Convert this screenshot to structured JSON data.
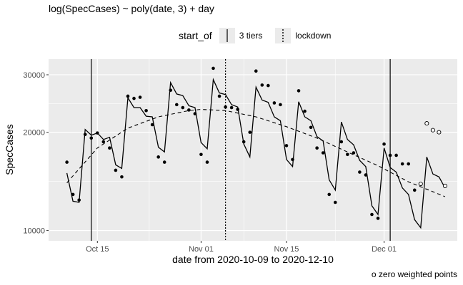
{
  "chart_data": {
    "type": "scatter",
    "title": "log(SpecCases) ~ poly(date, 3) + day",
    "xlabel": "date from 2020-10-09 to 2020-12-10",
    "ylabel": "SpecCases",
    "x_range": [
      "2020-10-07",
      "2020-12-13"
    ],
    "y_range": [
      9300,
      33500
    ],
    "y_scale": "log",
    "y_ticks": [
      {
        "value": 10000,
        "label": "10000"
      },
      {
        "value": 20000,
        "label": "20000"
      },
      {
        "value": 30000,
        "label": "30000"
      }
    ],
    "x_ticks": [
      {
        "date": "2020-10-15",
        "label": "Oct 15"
      },
      {
        "date": "2020-11-01",
        "label": "Nov 01"
      },
      {
        "date": "2020-11-15",
        "label": "Nov 15"
      },
      {
        "date": "2020-12-01",
        "label": "Dec 01"
      }
    ],
    "grid": true,
    "legend": {
      "title": "start_of",
      "position": "top",
      "entries": [
        {
          "label": "3 tiers",
          "linetype": "solid"
        },
        {
          "label": "lockdown",
          "linetype": "dotted"
        }
      ]
    },
    "vlines": [
      {
        "date": "2020-10-14",
        "linetype": "solid"
      },
      {
        "date": "2020-11-05",
        "linetype": "dotted"
      },
      {
        "date": "2020-12-02",
        "linetype": "solid"
      }
    ],
    "note": "o zero weighted points",
    "series": [
      {
        "kind": "points",
        "points": [
          [
            "2020-10-10",
            16200
          ],
          [
            "2020-10-11",
            12900
          ],
          [
            "2020-10-12",
            12400
          ],
          [
            "2020-10-13",
            19700
          ],
          [
            "2020-10-14",
            19200
          ],
          [
            "2020-10-15",
            19900
          ],
          [
            "2020-10-16",
            18700
          ],
          [
            "2020-10-17",
            17900
          ],
          [
            "2020-10-18",
            15300
          ],
          [
            "2020-10-19",
            14600
          ],
          [
            "2020-10-20",
            25800
          ],
          [
            "2020-10-21",
            25400
          ],
          [
            "2020-10-22",
            25600
          ],
          [
            "2020-10-23",
            23300
          ],
          [
            "2020-10-24",
            21100
          ],
          [
            "2020-10-25",
            16800
          ],
          [
            "2020-10-26",
            16200
          ],
          [
            "2020-10-27",
            26900
          ],
          [
            "2020-10-28",
            24300
          ],
          [
            "2020-10-29",
            23800
          ],
          [
            "2020-10-30",
            23400
          ],
          [
            "2020-10-31",
            22800
          ],
          [
            "2020-11-01",
            17100
          ],
          [
            "2020-11-02",
            16200
          ],
          [
            "2020-11-03",
            31400
          ],
          [
            "2020-11-04",
            25800
          ],
          [
            "2020-11-05",
            23900
          ],
          [
            "2020-11-06",
            23800
          ],
          [
            "2020-11-07",
            23500
          ],
          [
            "2020-11-08",
            18700
          ],
          [
            "2020-11-09",
            20000
          ],
          [
            "2020-11-10",
            30800
          ],
          [
            "2020-11-11",
            27900
          ],
          [
            "2020-11-12",
            27800
          ],
          [
            "2020-11-13",
            24600
          ],
          [
            "2020-11-14",
            24300
          ],
          [
            "2020-11-15",
            18200
          ],
          [
            "2020-11-16",
            16500
          ],
          [
            "2020-11-17",
            26800
          ],
          [
            "2020-11-18",
            23200
          ],
          [
            "2020-11-19",
            20700
          ],
          [
            "2020-11-20",
            17900
          ],
          [
            "2020-11-21",
            17300
          ],
          [
            "2020-11-22",
            12900
          ],
          [
            "2020-11-23",
            12200
          ],
          [
            "2020-11-24",
            18700
          ],
          [
            "2020-11-25",
            17100
          ],
          [
            "2020-11-26",
            17300
          ],
          [
            "2020-11-27",
            15100
          ],
          [
            "2020-11-28",
            14800
          ],
          [
            "2020-11-29",
            11200
          ],
          [
            "2020-11-30",
            10900
          ],
          [
            "2020-12-01",
            18400
          ],
          [
            "2020-12-02",
            17000
          ],
          [
            "2020-12-03",
            17000
          ],
          [
            "2020-12-04",
            16000
          ],
          [
            "2020-12-05",
            16000
          ],
          [
            "2020-12-06",
            13300
          ]
        ]
      },
      {
        "kind": "zero_weighted_points",
        "points": [
          [
            "2020-12-07",
            13900
          ],
          [
            "2020-12-08",
            21300
          ],
          [
            "2020-12-09",
            20300
          ],
          [
            "2020-12-10",
            20000
          ],
          [
            "2020-12-11",
            13700
          ]
        ]
      },
      {
        "kind": "fit_line",
        "linetype": "solid",
        "points": [
          [
            "2020-10-10",
            15000
          ],
          [
            "2020-10-11",
            12300
          ],
          [
            "2020-10-12",
            12200
          ],
          [
            "2020-10-13",
            20400
          ],
          [
            "2020-10-14",
            19600
          ],
          [
            "2020-10-15",
            19900
          ],
          [
            "2020-10-16",
            19000
          ],
          [
            "2020-10-17",
            19300
          ],
          [
            "2020-10-18",
            15900
          ],
          [
            "2020-10-19",
            15500
          ],
          [
            "2020-10-20",
            25500
          ],
          [
            "2020-10-21",
            23800
          ],
          [
            "2020-10-22",
            23800
          ],
          [
            "2020-10-23",
            22400
          ],
          [
            "2020-10-24",
            22300
          ],
          [
            "2020-10-25",
            18000
          ],
          [
            "2020-10-26",
            17400
          ],
          [
            "2020-10-27",
            28400
          ],
          [
            "2020-10-28",
            26200
          ],
          [
            "2020-10-29",
            25900
          ],
          [
            "2020-10-30",
            24100
          ],
          [
            "2020-10-31",
            23800
          ],
          [
            "2020-11-01",
            18600
          ],
          [
            "2020-11-02",
            17800
          ],
          [
            "2020-11-03",
            29000
          ],
          [
            "2020-11-04",
            26400
          ],
          [
            "2020-11-05",
            26100
          ],
          [
            "2020-11-06",
            24300
          ],
          [
            "2020-11-07",
            23900
          ],
          [
            "2020-11-08",
            18400
          ],
          [
            "2020-11-09",
            16800
          ],
          [
            "2020-11-10",
            27500
          ],
          [
            "2020-11-11",
            25100
          ],
          [
            "2020-11-12",
            24700
          ],
          [
            "2020-11-13",
            22300
          ],
          [
            "2020-11-14",
            21700
          ],
          [
            "2020-11-15",
            16500
          ],
          [
            "2020-11-16",
            15700
          ],
          [
            "2020-11-17",
            24800
          ],
          [
            "2020-11-18",
            22300
          ],
          [
            "2020-11-19",
            21700
          ],
          [
            "2020-11-20",
            19400
          ],
          [
            "2020-11-21",
            18800
          ],
          [
            "2020-11-22",
            14300
          ],
          [
            "2020-11-23",
            13300
          ],
          [
            "2020-11-24",
            21500
          ],
          [
            "2020-11-25",
            19000
          ],
          [
            "2020-11-26",
            18300
          ],
          [
            "2020-11-27",
            16400
          ],
          [
            "2020-11-28",
            15700
          ],
          [
            "2020-11-29",
            11900
          ],
          [
            "2020-11-30",
            11200
          ],
          [
            "2020-12-01",
            17900
          ],
          [
            "2020-12-02",
            15600
          ],
          [
            "2020-12-03",
            15100
          ],
          [
            "2020-12-04",
            13500
          ],
          [
            "2020-12-05",
            12900
          ],
          [
            "2020-12-06",
            10800
          ],
          [
            "2020-12-07",
            10200
          ],
          [
            "2020-12-08",
            16800
          ],
          [
            "2020-12-09",
            14900
          ],
          [
            "2020-12-10",
            14600
          ],
          [
            "2020-12-11",
            13500
          ]
        ]
      },
      {
        "kind": "trend_curve",
        "linetype": "dashed",
        "points": [
          [
            "2020-10-10",
            14000
          ],
          [
            "2020-10-15",
            17900
          ],
          [
            "2020-10-20",
            20600
          ],
          [
            "2020-10-25",
            22300
          ],
          [
            "2020-10-30",
            23300
          ],
          [
            "2020-11-01",
            23500
          ],
          [
            "2020-11-05",
            23300
          ],
          [
            "2020-11-10",
            22300
          ],
          [
            "2020-11-15",
            20800
          ],
          [
            "2020-11-20",
            19200
          ],
          [
            "2020-11-25",
            17400
          ],
          [
            "2020-11-30",
            15800
          ],
          [
            "2020-12-05",
            14100
          ],
          [
            "2020-12-11",
            12700
          ]
        ]
      }
    ]
  }
}
